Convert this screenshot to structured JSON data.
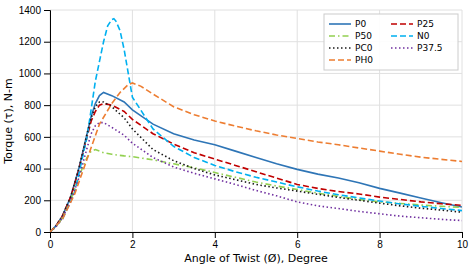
{
  "chart_data": {
    "type": "line",
    "xlabel": "Angle of Twist (Ø),  Degree",
    "ylabel": "Torque (τ), N-m",
    "xlim": [
      0,
      10
    ],
    "ylim": [
      0,
      1400
    ],
    "xticks": [
      0,
      2,
      4,
      6,
      8,
      10
    ],
    "yticks": [
      0,
      200,
      400,
      600,
      800,
      1000,
      1200,
      1400
    ],
    "grid": true,
    "legend": "upper right",
    "series": [
      {
        "name": "P0",
        "color": "#2e75b6",
        "line_style": "solid",
        "x": [
          0,
          0.15,
          0.3,
          0.5,
          0.7,
          0.9,
          1.0,
          1.1,
          1.2,
          1.3,
          1.5,
          1.8,
          2.0,
          2.5,
          3.0,
          3.5,
          4.0,
          4.5,
          5.0,
          5.5,
          6.0,
          6.5,
          7.0,
          7.5,
          8.0,
          8.5,
          9.0,
          9.5,
          10.0
        ],
        "values": [
          0,
          40,
          100,
          220,
          400,
          620,
          730,
          810,
          860,
          880,
          860,
          820,
          770,
          680,
          620,
          580,
          550,
          510,
          470,
          430,
          395,
          365,
          340,
          310,
          275,
          245,
          215,
          185,
          158
        ]
      },
      {
        "name": "P25",
        "color": "#c00000",
        "line_style": "dashed",
        "x": [
          0,
          0.15,
          0.3,
          0.5,
          0.7,
          0.9,
          1.0,
          1.1,
          1.2,
          1.3,
          1.5,
          1.8,
          2.0,
          2.5,
          3.0,
          3.5,
          4.0,
          4.5,
          5.0,
          5.5,
          6.0,
          6.5,
          7.0,
          7.5,
          8.0,
          8.5,
          9.0,
          9.5,
          10.0
        ],
        "values": [
          0,
          40,
          100,
          220,
          390,
          600,
          700,
          760,
          800,
          810,
          800,
          760,
          710,
          620,
          555,
          500,
          460,
          420,
          380,
          340,
          300,
          275,
          255,
          240,
          220,
          205,
          190,
          178,
          168
        ]
      },
      {
        "name": "P50",
        "color": "#92d050",
        "line_style": "dashdot",
        "x": [
          0,
          0.15,
          0.3,
          0.5,
          0.7,
          0.9,
          1.0,
          1.1,
          1.2,
          1.3,
          1.5,
          1.8,
          2.0,
          2.5,
          3.0,
          3.5,
          4.0,
          4.5,
          5.0,
          5.5,
          6.0,
          6.5,
          7.0,
          7.5,
          8.0,
          8.5,
          9.0,
          9.5,
          10.0
        ],
        "values": [
          0,
          35,
          90,
          200,
          350,
          470,
          510,
          520,
          510,
          500,
          490,
          480,
          475,
          455,
          430,
          405,
          375,
          345,
          315,
          290,
          268,
          245,
          225,
          205,
          190,
          180,
          170,
          162,
          155
        ]
      },
      {
        "name": "N0",
        "color": "#00b0f0",
        "line_style": "dashed",
        "x": [
          0,
          0.3,
          0.6,
          0.9,
          1.1,
          1.3,
          1.4,
          1.5,
          1.55,
          1.6,
          1.7,
          1.8,
          2.0,
          2.5,
          3.0,
          3.5,
          4.0,
          4.5,
          5.0,
          5.5,
          6.0,
          6.5,
          7.0,
          7.5,
          8.0,
          8.5,
          9.0,
          9.5,
          10.0
        ],
        "values": [
          0,
          80,
          250,
          600,
          950,
          1200,
          1300,
          1340,
          1345,
          1330,
          1270,
          1150,
          850,
          650,
          540,
          470,
          420,
          380,
          345,
          315,
          285,
          258,
          235,
          215,
          195,
          177,
          162,
          148,
          135
        ]
      },
      {
        "name": "PC0",
        "color": "#1a1a1a",
        "line_style": "dotted",
        "x": [
          0,
          0.15,
          0.3,
          0.5,
          0.7,
          0.9,
          1.0,
          1.1,
          1.2,
          1.3,
          1.5,
          1.8,
          2.0,
          2.5,
          3.0,
          3.5,
          4.0,
          4.5,
          5.0,
          5.5,
          6.0,
          6.5,
          7.0,
          7.5,
          8.0,
          8.5,
          9.0,
          9.5,
          10.0
        ],
        "values": [
          0,
          40,
          100,
          220,
          400,
          620,
          720,
          790,
          820,
          820,
          790,
          720,
          650,
          520,
          450,
          400,
          360,
          330,
          300,
          278,
          258,
          238,
          218,
          200,
          182,
          165,
          150,
          138,
          125
        ]
      },
      {
        "name": "P37.5",
        "color": "#7030a0",
        "line_style": "dotted",
        "x": [
          0,
          0.15,
          0.3,
          0.5,
          0.7,
          0.9,
          1.0,
          1.1,
          1.2,
          1.3,
          1.5,
          1.8,
          2.0,
          2.5,
          3.0,
          3.5,
          4.0,
          4.5,
          5.0,
          5.5,
          6.0,
          6.5,
          7.0,
          7.5,
          8.0,
          8.5,
          9.0,
          9.5,
          10.0
        ],
        "values": [
          0,
          35,
          90,
          190,
          340,
          530,
          620,
          670,
          690,
          690,
          660,
          610,
          560,
          470,
          410,
          370,
          335,
          300,
          262,
          228,
          190,
          165,
          148,
          130,
          115,
          100,
          90,
          80,
          72
        ]
      },
      {
        "name": "PH0",
        "color": "#ed7d31",
        "line_style": "dashed",
        "x": [
          0,
          0.3,
          0.6,
          0.9,
          1.2,
          1.5,
          1.7,
          1.9,
          2.0,
          2.2,
          2.5,
          3.0,
          3.5,
          4.0,
          4.5,
          5.0,
          5.5,
          6.0,
          6.5,
          7.0,
          7.5,
          8.0,
          8.5,
          9.0,
          9.5,
          10.0
        ],
        "values": [
          0,
          80,
          240,
          460,
          680,
          810,
          880,
          930,
          940,
          920,
          870,
          790,
          740,
          700,
          668,
          638,
          612,
          590,
          568,
          550,
          530,
          510,
          490,
          472,
          458,
          445
        ]
      }
    ]
  }
}
